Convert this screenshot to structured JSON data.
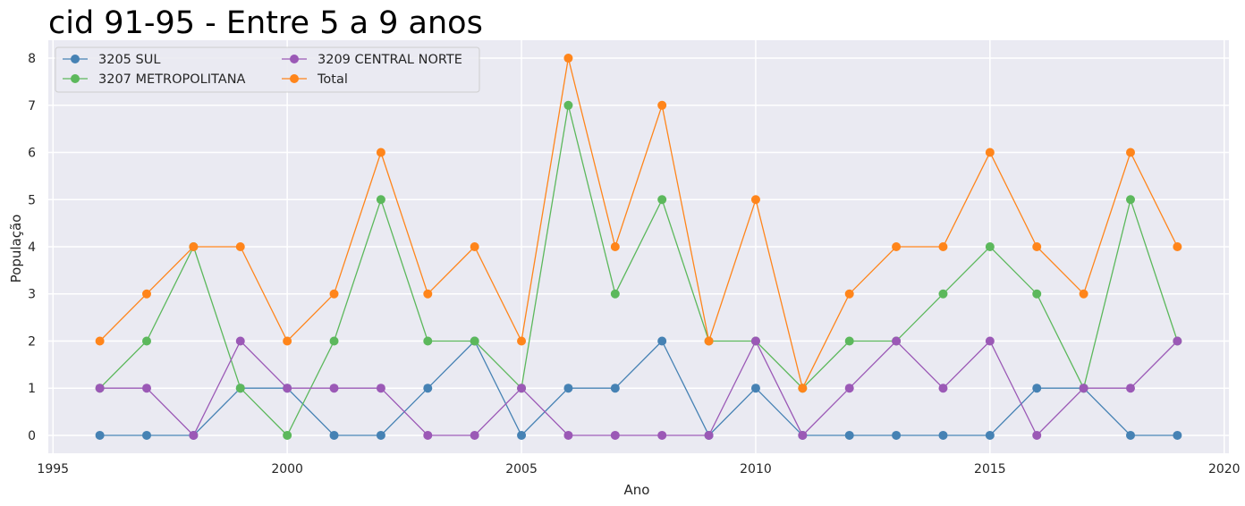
{
  "chart_data": {
    "type": "line",
    "title": "cid 91-95 - Entre 5 a 9 anos",
    "xlabel": "Ano",
    "ylabel": "População",
    "xlim": [
      1994.9,
      2020.1
    ],
    "ylim": [
      -0.38,
      8.38
    ],
    "xticks": [
      1995,
      2000,
      2005,
      2010,
      2015,
      2020
    ],
    "yticks": [
      0,
      1,
      2,
      3,
      4,
      5,
      6,
      7,
      8
    ],
    "grid": true,
    "legend": {
      "placement": "top-left",
      "columns": 2
    },
    "x": [
      1996,
      1997,
      1998,
      1999,
      2000,
      2001,
      2002,
      2003,
      2004,
      2005,
      2006,
      2007,
      2008,
      2009,
      2010,
      2011,
      2012,
      2013,
      2014,
      2015,
      2016,
      2017,
      2018,
      2019
    ],
    "series": [
      {
        "name": "3205 SUL",
        "color": "#4682b4",
        "values": [
          0,
          0,
          0,
          1,
          1,
          0,
          0,
          1,
          2,
          0,
          1,
          1,
          2,
          0,
          1,
          0,
          0,
          0,
          0,
          0,
          1,
          1,
          0,
          0
        ]
      },
      {
        "name": "3207 METROPOLITANA",
        "color": "#5cb85c",
        "values": [
          1,
          2,
          4,
          1,
          0,
          2,
          5,
          2,
          2,
          1,
          7,
          3,
          5,
          2,
          2,
          1,
          2,
          2,
          3,
          4,
          3,
          1,
          5,
          2
        ]
      },
      {
        "name": "3209 CENTRAL NORTE",
        "color": "#9b59b6",
        "values": [
          1,
          1,
          0,
          2,
          1,
          1,
          1,
          0,
          0,
          1,
          0,
          0,
          0,
          0,
          2,
          0,
          1,
          2,
          1,
          2,
          0,
          1,
          1,
          2
        ]
      },
      {
        "name": "Total",
        "color": "#ff851b",
        "values": [
          2,
          3,
          4,
          4,
          2,
          3,
          6,
          3,
          4,
          2,
          8,
          4,
          7,
          2,
          5,
          1,
          3,
          4,
          4,
          6,
          4,
          3,
          6,
          4
        ]
      }
    ]
  }
}
